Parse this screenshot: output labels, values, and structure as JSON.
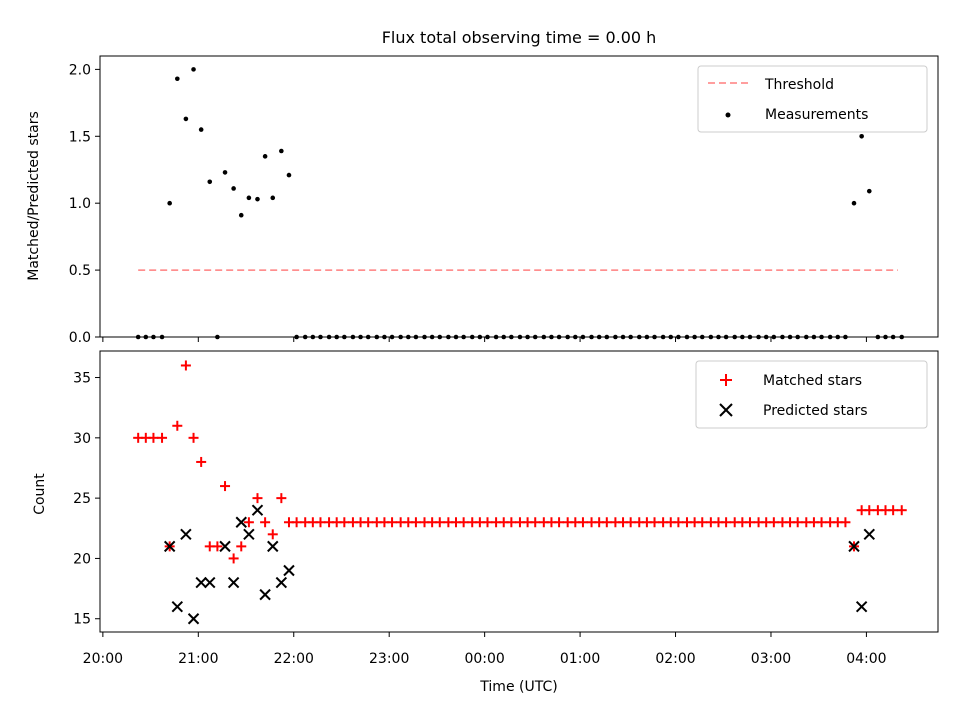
{
  "title": "Flux total observing time = 0.00 h",
  "colors": {
    "threshold": "#ff7f7f",
    "matched": "#ff0000",
    "predicted": "#000000",
    "measurement": "#000000"
  },
  "top": {
    "ylabel": "Matched/Predicted stars",
    "yticks": [
      "0.0",
      "0.5",
      "1.0",
      "1.5",
      "2.0"
    ],
    "legend": [
      "Threshold",
      "Measurements"
    ]
  },
  "bottom": {
    "ylabel": "Count",
    "yticks": [
      "15",
      "20",
      "25",
      "30",
      "35"
    ],
    "legend": [
      "Matched stars",
      "Predicted stars"
    ]
  },
  "xlabel": "Time (UTC)",
  "xticks": [
    "20:00",
    "21:00",
    "22:00",
    "23:00",
    "00:00",
    "01:00",
    "02:00",
    "03:00",
    "04:00"
  ],
  "chart_data": [
    {
      "type": "scatter",
      "panel": "top",
      "x_unit": "hours after 20:00 UTC",
      "xlim": [
        -0.03,
        8.75
      ],
      "ylim": [
        0,
        2.1
      ],
      "threshold": {
        "value": 0.5,
        "x_range": [
          0.37,
          8.33
        ],
        "style": "dashed"
      },
      "series": [
        {
          "name": "Measurements",
          "x": [
            0.37,
            0.45,
            0.53,
            0.62,
            0.7,
            0.78,
            0.87,
            0.95,
            1.03,
            1.12,
            1.2,
            1.28,
            1.37,
            1.45,
            1.53,
            1.62,
            1.7,
            1.78,
            1.87,
            1.95,
            2.03,
            2.12,
            2.2,
            2.28,
            2.37,
            2.45,
            2.53,
            2.62,
            2.7,
            2.78,
            2.87,
            2.95,
            3.03,
            3.12,
            3.2,
            3.28,
            3.37,
            3.45,
            3.53,
            3.62,
            3.7,
            3.78,
            3.87,
            3.95,
            4.03,
            4.12,
            4.2,
            4.28,
            4.37,
            4.45,
            4.53,
            4.62,
            4.7,
            4.78,
            4.87,
            4.95,
            5.03,
            5.12,
            5.2,
            5.28,
            5.37,
            5.45,
            5.53,
            5.62,
            5.7,
            5.78,
            5.87,
            5.95,
            6.03,
            6.12,
            6.2,
            6.28,
            6.37,
            6.45,
            6.53,
            6.62,
            6.7,
            6.78,
            6.87,
            6.95,
            7.03,
            7.12,
            7.2,
            7.28,
            7.37,
            7.45,
            7.53,
            7.62,
            7.7,
            7.78,
            7.87,
            7.95,
            8.03,
            8.12,
            8.2,
            8.28,
            8.37
          ],
          "y": [
            0,
            0,
            0,
            0,
            1.0,
            1.93,
            1.63,
            2.0,
            1.55,
            1.16,
            0,
            1.23,
            1.11,
            0.91,
            1.04,
            1.03,
            1.35,
            1.04,
            1.39,
            1.21,
            0,
            0,
            0,
            0,
            0,
            0,
            0,
            0,
            0,
            0,
            0,
            0,
            0,
            0,
            0,
            0,
            0,
            0,
            0,
            0,
            0,
            0,
            0,
            0,
            0,
            0,
            0,
            0,
            0,
            0,
            0,
            0,
            0,
            0,
            0,
            0,
            0,
            0,
            0,
            0,
            0,
            0,
            0,
            0,
            0,
            0,
            0,
            0,
            0,
            0,
            0,
            0,
            0,
            0,
            0,
            0,
            0,
            0,
            0,
            0,
            0,
            0,
            0,
            0,
            0,
            0,
            0,
            0,
            0,
            0,
            1.0,
            1.5,
            1.09,
            0,
            0,
            0,
            0
          ]
        }
      ]
    },
    {
      "type": "scatter",
      "panel": "bottom",
      "x_unit": "hours after 20:00 UTC",
      "xlim": [
        -0.03,
        8.75
      ],
      "ylim": [
        13.9,
        37.2
      ],
      "series": [
        {
          "name": "Matched stars",
          "x": [
            0.37,
            0.45,
            0.53,
            0.62,
            0.7,
            0.78,
            0.87,
            0.95,
            1.03,
            1.12,
            1.2,
            1.28,
            1.37,
            1.45,
            1.53,
            1.62,
            1.7,
            1.78,
            1.87,
            1.95,
            2.03,
            2.12,
            2.2,
            2.28,
            2.37,
            2.45,
            2.53,
            2.62,
            2.7,
            2.78,
            2.87,
            2.95,
            3.03,
            3.12,
            3.2,
            3.28,
            3.37,
            3.45,
            3.53,
            3.62,
            3.7,
            3.78,
            3.87,
            3.95,
            4.03,
            4.12,
            4.2,
            4.28,
            4.37,
            4.45,
            4.53,
            4.62,
            4.7,
            4.78,
            4.87,
            4.95,
            5.03,
            5.12,
            5.2,
            5.28,
            5.37,
            5.45,
            5.53,
            5.62,
            5.7,
            5.78,
            5.87,
            5.95,
            6.03,
            6.12,
            6.2,
            6.28,
            6.37,
            6.45,
            6.53,
            6.62,
            6.7,
            6.78,
            6.87,
            6.95,
            7.03,
            7.12,
            7.2,
            7.28,
            7.37,
            7.45,
            7.53,
            7.62,
            7.7,
            7.78,
            7.87,
            7.95,
            8.03,
            8.12,
            8.2,
            8.28,
            8.37
          ],
          "y": [
            30,
            30,
            30,
            30,
            21,
            31,
            36,
            30,
            28,
            21,
            21,
            26,
            20,
            21,
            23,
            25,
            23,
            22,
            25,
            23,
            23,
            23,
            23,
            23,
            23,
            23,
            23,
            23,
            23,
            23,
            23,
            23,
            23,
            23,
            23,
            23,
            23,
            23,
            23,
            23,
            23,
            23,
            23,
            23,
            23,
            23,
            23,
            23,
            23,
            23,
            23,
            23,
            23,
            23,
            23,
            23,
            23,
            23,
            23,
            23,
            23,
            23,
            23,
            23,
            23,
            23,
            23,
            23,
            23,
            23,
            23,
            23,
            23,
            23,
            23,
            23,
            23,
            23,
            23,
            23,
            23,
            23,
            23,
            23,
            23,
            23,
            23,
            23,
            23,
            23,
            21,
            24,
            24,
            24,
            24,
            24,
            24
          ]
        },
        {
          "name": "Predicted stars",
          "x": [
            0.7,
            0.78,
            0.87,
            0.95,
            1.03,
            1.12,
            1.28,
            1.37,
            1.45,
            1.53,
            1.62,
            1.7,
            1.78,
            1.87,
            1.95,
            7.87,
            7.95,
            8.03
          ],
          "y": [
            21,
            16,
            22,
            15,
            18,
            18,
            21,
            18,
            23,
            22,
            24,
            17,
            21,
            18,
            19,
            21,
            16,
            22
          ]
        }
      ]
    }
  ]
}
